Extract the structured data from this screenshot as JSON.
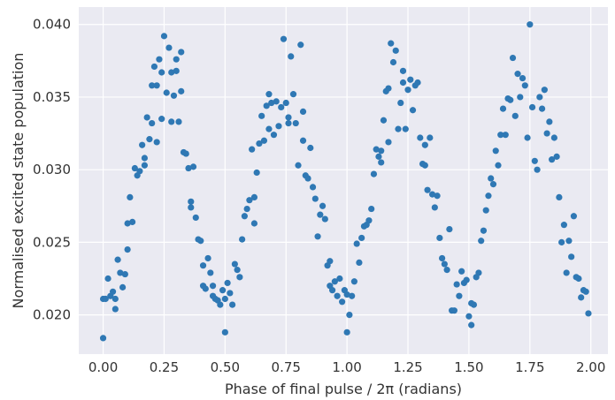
{
  "chart_data": {
    "type": "scatter",
    "title": "",
    "xlabel": "Phase of final pulse / 2π (radians)",
    "ylabel": "Normalised excited state population",
    "xlim": [
      -0.1,
      2.07
    ],
    "ylim": [
      0.0173,
      0.0412
    ],
    "x_ticks": [
      0.0,
      0.25,
      0.5,
      0.75,
      1.0,
      1.25,
      1.5,
      1.75,
      2.0
    ],
    "x_tick_labels": [
      "0.00",
      "0.25",
      "0.50",
      "0.75",
      "1.00",
      "1.25",
      "1.50",
      "1.75",
      "2.00"
    ],
    "y_ticks": [
      0.02,
      0.025,
      0.03,
      0.035,
      0.04
    ],
    "y_tick_labels": [
      "0.020",
      "0.025",
      "0.030",
      "0.035",
      "0.040"
    ],
    "grid": true,
    "legend": "none",
    "colors": {
      "marker": "#2f78b4",
      "plot_background": "#eaeaf2",
      "grid": "#ffffff"
    },
    "points": [
      [
        0.0,
        0.0184
      ],
      [
        0.0,
        0.0211
      ],
      [
        0.01,
        0.0211
      ],
      [
        0.02,
        0.0225
      ],
      [
        0.03,
        0.0213
      ],
      [
        0.04,
        0.0216
      ],
      [
        0.05,
        0.0204
      ],
      [
        0.05,
        0.0211
      ],
      [
        0.06,
        0.0238
      ],
      [
        0.07,
        0.0229
      ],
      [
        0.08,
        0.0219
      ],
      [
        0.09,
        0.0228
      ],
      [
        0.1,
        0.0263
      ],
      [
        0.1,
        0.0245
      ],
      [
        0.11,
        0.0281
      ],
      [
        0.12,
        0.0264
      ],
      [
        0.13,
        0.0301
      ],
      [
        0.14,
        0.0296
      ],
      [
        0.15,
        0.0299
      ],
      [
        0.16,
        0.0317
      ],
      [
        0.17,
        0.0308
      ],
      [
        0.17,
        0.0303
      ],
      [
        0.18,
        0.0336
      ],
      [
        0.19,
        0.0321
      ],
      [
        0.2,
        0.0332
      ],
      [
        0.2,
        0.0358
      ],
      [
        0.21,
        0.0371
      ],
      [
        0.22,
        0.0358
      ],
      [
        0.22,
        0.0319
      ],
      [
        0.23,
        0.0376
      ],
      [
        0.24,
        0.0335
      ],
      [
        0.24,
        0.0367
      ],
      [
        0.25,
        0.0392
      ],
      [
        0.26,
        0.0353
      ],
      [
        0.27,
        0.0384
      ],
      [
        0.28,
        0.0367
      ],
      [
        0.28,
        0.0333
      ],
      [
        0.29,
        0.0351
      ],
      [
        0.3,
        0.0368
      ],
      [
        0.3,
        0.0376
      ],
      [
        0.31,
        0.0333
      ],
      [
        0.32,
        0.0381
      ],
      [
        0.32,
        0.0354
      ],
      [
        0.33,
        0.0312
      ],
      [
        0.34,
        0.0311
      ],
      [
        0.35,
        0.0301
      ],
      [
        0.36,
        0.0278
      ],
      [
        0.36,
        0.0274
      ],
      [
        0.37,
        0.0302
      ],
      [
        0.38,
        0.0267
      ],
      [
        0.39,
        0.0252
      ],
      [
        0.4,
        0.0251
      ],
      [
        0.41,
        0.022
      ],
      [
        0.41,
        0.0234
      ],
      [
        0.42,
        0.0218
      ],
      [
        0.43,
        0.0239
      ],
      [
        0.44,
        0.0229
      ],
      [
        0.45,
        0.0213
      ],
      [
        0.45,
        0.022
      ],
      [
        0.46,
        0.0211
      ],
      [
        0.47,
        0.021
      ],
      [
        0.48,
        0.0207
      ],
      [
        0.49,
        0.0217
      ],
      [
        0.5,
        0.0188
      ],
      [
        0.5,
        0.0211
      ],
      [
        0.51,
        0.0222
      ],
      [
        0.52,
        0.0215
      ],
      [
        0.53,
        0.0207
      ],
      [
        0.54,
        0.0235
      ],
      [
        0.55,
        0.0231
      ],
      [
        0.56,
        0.0226
      ],
      [
        0.57,
        0.0252
      ],
      [
        0.58,
        0.0268
      ],
      [
        0.59,
        0.0273
      ],
      [
        0.6,
        0.0279
      ],
      [
        0.61,
        0.0314
      ],
      [
        0.62,
        0.0263
      ],
      [
        0.62,
        0.0281
      ],
      [
        0.63,
        0.0298
      ],
      [
        0.64,
        0.0318
      ],
      [
        0.65,
        0.0337
      ],
      [
        0.66,
        0.032
      ],
      [
        0.67,
        0.0344
      ],
      [
        0.68,
        0.0328
      ],
      [
        0.68,
        0.0352
      ],
      [
        0.69,
        0.0346
      ],
      [
        0.7,
        0.0324
      ],
      [
        0.71,
        0.0347
      ],
      [
        0.72,
        0.033
      ],
      [
        0.73,
        0.0343
      ],
      [
        0.74,
        0.039
      ],
      [
        0.75,
        0.0346
      ],
      [
        0.76,
        0.0336
      ],
      [
        0.76,
        0.0332
      ],
      [
        0.77,
        0.0378
      ],
      [
        0.78,
        0.0352
      ],
      [
        0.79,
        0.0332
      ],
      [
        0.8,
        0.0303
      ],
      [
        0.81,
        0.0386
      ],
      [
        0.82,
        0.034
      ],
      [
        0.82,
        0.032
      ],
      [
        0.83,
        0.0296
      ],
      [
        0.84,
        0.0294
      ],
      [
        0.85,
        0.0315
      ],
      [
        0.86,
        0.0288
      ],
      [
        0.87,
        0.028
      ],
      [
        0.88,
        0.0254
      ],
      [
        0.89,
        0.0269
      ],
      [
        0.9,
        0.0275
      ],
      [
        0.91,
        0.0266
      ],
      [
        0.92,
        0.0234
      ],
      [
        0.93,
        0.0237
      ],
      [
        0.93,
        0.022
      ],
      [
        0.94,
        0.0217
      ],
      [
        0.95,
        0.0223
      ],
      [
        0.96,
        0.0213
      ],
      [
        0.97,
        0.0225
      ],
      [
        0.98,
        0.0209
      ],
      [
        0.99,
        0.0217
      ],
      [
        1.0,
        0.0188
      ],
      [
        1.0,
        0.0214
      ],
      [
        1.01,
        0.02
      ],
      [
        1.02,
        0.0213
      ],
      [
        1.03,
        0.0223
      ],
      [
        1.04,
        0.0249
      ],
      [
        1.05,
        0.0236
      ],
      [
        1.06,
        0.0253
      ],
      [
        1.07,
        0.0261
      ],
      [
        1.08,
        0.0262
      ],
      [
        1.09,
        0.0265
      ],
      [
        1.1,
        0.0273
      ],
      [
        1.11,
        0.0297
      ],
      [
        1.12,
        0.0314
      ],
      [
        1.13,
        0.0309
      ],
      [
        1.14,
        0.0313
      ],
      [
        1.14,
        0.0305
      ],
      [
        1.15,
        0.0334
      ],
      [
        1.16,
        0.0354
      ],
      [
        1.17,
        0.0356
      ],
      [
        1.17,
        0.0319
      ],
      [
        1.18,
        0.0387
      ],
      [
        1.19,
        0.0374
      ],
      [
        1.2,
        0.0382
      ],
      [
        1.21,
        0.0328
      ],
      [
        1.22,
        0.0346
      ],
      [
        1.23,
        0.0368
      ],
      [
        1.23,
        0.036
      ],
      [
        1.24,
        0.0328
      ],
      [
        1.25,
        0.0355
      ],
      [
        1.26,
        0.0362
      ],
      [
        1.27,
        0.0341
      ],
      [
        1.28,
        0.0358
      ],
      [
        1.29,
        0.036
      ],
      [
        1.3,
        0.0322
      ],
      [
        1.31,
        0.0304
      ],
      [
        1.32,
        0.0317
      ],
      [
        1.32,
        0.0303
      ],
      [
        1.33,
        0.0286
      ],
      [
        1.34,
        0.0322
      ],
      [
        1.35,
        0.0283
      ],
      [
        1.36,
        0.0274
      ],
      [
        1.37,
        0.0282
      ],
      [
        1.38,
        0.0253
      ],
      [
        1.39,
        0.0239
      ],
      [
        1.4,
        0.0235
      ],
      [
        1.41,
        0.0231
      ],
      [
        1.42,
        0.0259
      ],
      [
        1.43,
        0.0203
      ],
      [
        1.44,
        0.0203
      ],
      [
        1.45,
        0.0221
      ],
      [
        1.46,
        0.0213
      ],
      [
        1.47,
        0.023
      ],
      [
        1.48,
        0.0222
      ],
      [
        1.49,
        0.0224
      ],
      [
        1.5,
        0.0199
      ],
      [
        1.51,
        0.0193
      ],
      [
        1.51,
        0.0208
      ],
      [
        1.52,
        0.0207
      ],
      [
        1.53,
        0.0226
      ],
      [
        1.54,
        0.0229
      ],
      [
        1.55,
        0.0251
      ],
      [
        1.56,
        0.0258
      ],
      [
        1.57,
        0.0272
      ],
      [
        1.58,
        0.0282
      ],
      [
        1.59,
        0.0294
      ],
      [
        1.6,
        0.029
      ],
      [
        1.61,
        0.0313
      ],
      [
        1.62,
        0.0303
      ],
      [
        1.63,
        0.0324
      ],
      [
        1.64,
        0.0342
      ],
      [
        1.65,
        0.0324
      ],
      [
        1.66,
        0.0349
      ],
      [
        1.67,
        0.0348
      ],
      [
        1.68,
        0.0377
      ],
      [
        1.69,
        0.0337
      ],
      [
        1.7,
        0.0366
      ],
      [
        1.71,
        0.035
      ],
      [
        1.72,
        0.0363
      ],
      [
        1.73,
        0.0358
      ],
      [
        1.74,
        0.0322
      ],
      [
        1.75,
        0.04
      ],
      [
        1.76,
        0.0343
      ],
      [
        1.77,
        0.0306
      ],
      [
        1.78,
        0.03
      ],
      [
        1.79,
        0.035
      ],
      [
        1.8,
        0.0342
      ],
      [
        1.81,
        0.0355
      ],
      [
        1.82,
        0.0325
      ],
      [
        1.83,
        0.0333
      ],
      [
        1.84,
        0.0307
      ],
      [
        1.85,
        0.0322
      ],
      [
        1.86,
        0.0309
      ],
      [
        1.87,
        0.0281
      ],
      [
        1.88,
        0.025
      ],
      [
        1.89,
        0.0262
      ],
      [
        1.9,
        0.0229
      ],
      [
        1.91,
        0.0251
      ],
      [
        1.92,
        0.024
      ],
      [
        1.93,
        0.0268
      ],
      [
        1.94,
        0.0226
      ],
      [
        1.95,
        0.0225
      ],
      [
        1.96,
        0.0212
      ],
      [
        1.97,
        0.0217
      ],
      [
        1.98,
        0.0216
      ],
      [
        1.99,
        0.0201
      ]
    ]
  }
}
